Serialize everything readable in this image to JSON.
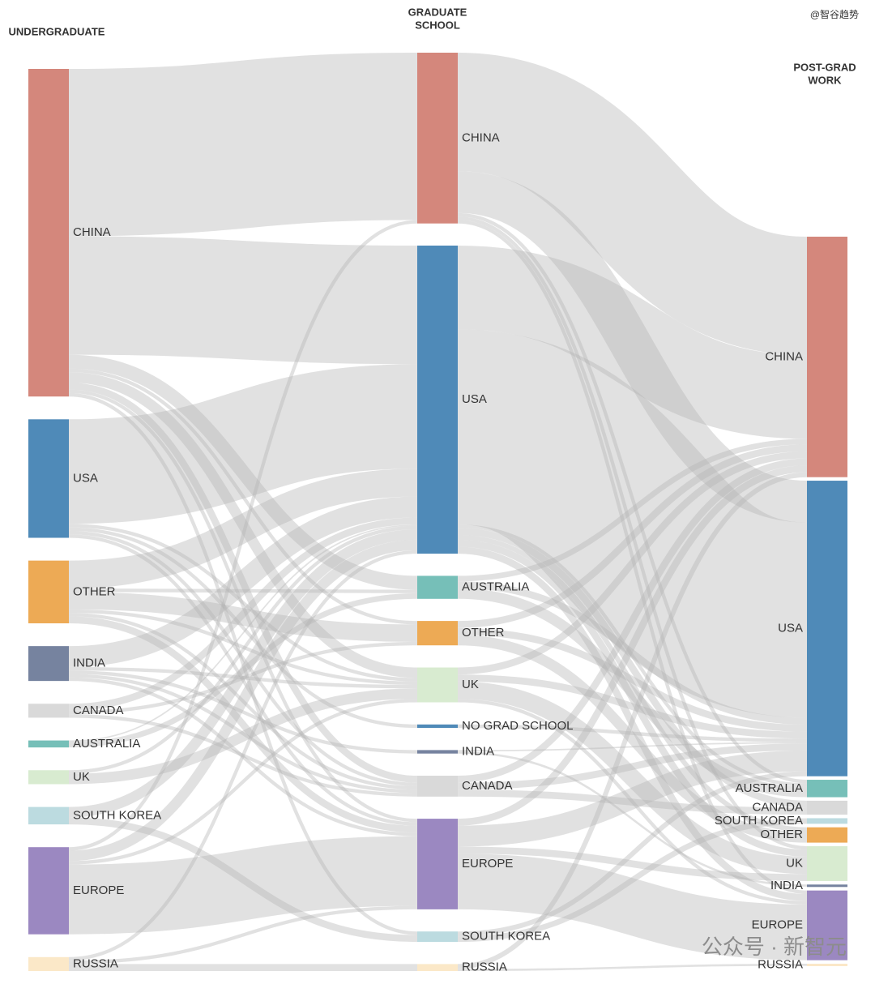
{
  "chart_data": {
    "type": "sankey",
    "columns": [
      {
        "title": [
          "UNDERGRADUATE"
        ],
        "nodes": [
          {
            "name": "CHINA",
            "color": "#d4877c"
          },
          {
            "name": "USA",
            "color": "#4f8ab8"
          },
          {
            "name": "OTHER",
            "color": "#edaa55"
          },
          {
            "name": "INDIA",
            "color": "#76839f"
          },
          {
            "name": "CANADA",
            "color": "#d9d9d9"
          },
          {
            "name": "AUSTRALIA",
            "color": "#76bfb8"
          },
          {
            "name": "UK",
            "color": "#d8ebd0"
          },
          {
            "name": "SOUTH KOREA",
            "color": "#bcdbe0"
          },
          {
            "name": "EUROPE",
            "color": "#9b88c1"
          },
          {
            "name": "RUSSIA",
            "color": "#fbe8c8"
          }
        ]
      },
      {
        "title": [
          "GRADUATE",
          "SCHOOL"
        ],
        "nodes": [
          {
            "name": "CHINA",
            "color": "#d4877c"
          },
          {
            "name": "USA",
            "color": "#4f8ab8"
          },
          {
            "name": "AUSTRALIA",
            "color": "#76bfb8"
          },
          {
            "name": "OTHER",
            "color": "#edaa55"
          },
          {
            "name": "UK",
            "color": "#d8ebd0"
          },
          {
            "name": "NO GRAD SCHOOL",
            "color": "#4f8ab8"
          },
          {
            "name": "INDIA",
            "color": "#76839f"
          },
          {
            "name": "CANADA",
            "color": "#d9d9d9"
          },
          {
            "name": "EUROPE",
            "color": "#9b88c1"
          },
          {
            "name": "SOUTH KOREA",
            "color": "#bcdbe0"
          },
          {
            "name": "RUSSIA",
            "color": "#fbe8c8"
          }
        ]
      },
      {
        "title": [
          "POST-GRAD",
          "WORK"
        ],
        "nodes": [
          {
            "name": "CHINA",
            "color": "#d4877c"
          },
          {
            "name": "USA",
            "color": "#4f8ab8"
          },
          {
            "name": "AUSTRALIA",
            "color": "#76bfb8"
          },
          {
            "name": "CANADA",
            "color": "#d9d9d9"
          },
          {
            "name": "SOUTH KOREA",
            "color": "#bcdbe0"
          },
          {
            "name": "OTHER",
            "color": "#edaa55"
          },
          {
            "name": "UK",
            "color": "#d8ebd0"
          },
          {
            "name": "INDIA",
            "color": "#76839f"
          },
          {
            "name": "EUROPE",
            "color": "#9b88c1"
          },
          {
            "name": "RUSSIA",
            "color": "#fbe8c8"
          }
        ]
      }
    ],
    "flows": [
      [
        {
          "from": "CHINA",
          "to": "CHINA",
          "value": 24
        },
        {
          "from": "CHINA",
          "to": "USA",
          "value": 17
        },
        {
          "from": "CHINA",
          "to": "AUSTRALIA",
          "value": 2
        },
        {
          "from": "CHINA",
          "to": "UK",
          "value": 1.5
        },
        {
          "from": "CHINA",
          "to": "CANADA",
          "value": 1
        },
        {
          "from": "CHINA",
          "to": "EUROPE",
          "value": 0.5
        },
        {
          "from": "CHINA",
          "to": "OTHER",
          "value": 0.5
        },
        {
          "from": "CHINA",
          "to": "SOUTH KOREA",
          "value": 0.5
        },
        {
          "from": "USA",
          "to": "USA",
          "value": 15
        },
        {
          "from": "USA",
          "to": "EUROPE",
          "value": 0.5
        },
        {
          "from": "USA",
          "to": "UK",
          "value": 0.5
        },
        {
          "from": "USA",
          "to": "CANADA",
          "value": 0.5
        },
        {
          "from": "USA",
          "to": "NO GRAD SCHOOL",
          "value": 0.5
        },
        {
          "from": "OTHER",
          "to": "USA",
          "value": 4
        },
        {
          "from": "OTHER",
          "to": "OTHER",
          "value": 2.5
        },
        {
          "from": "OTHER",
          "to": "EUROPE",
          "value": 1
        },
        {
          "from": "OTHER",
          "to": "AUSTRALIA",
          "value": 0.5
        },
        {
          "from": "OTHER",
          "to": "UK",
          "value": 0.5
        },
        {
          "from": "OTHER",
          "to": "CANADA",
          "value": 0.5
        },
        {
          "from": "INDIA",
          "to": "USA",
          "value": 3
        },
        {
          "from": "INDIA",
          "to": "INDIA",
          "value": 0.5
        },
        {
          "from": "INDIA",
          "to": "EUROPE",
          "value": 0.5
        },
        {
          "from": "INDIA",
          "to": "UK",
          "value": 0.5
        },
        {
          "from": "INDIA",
          "to": "CANADA",
          "value": 0.5
        },
        {
          "from": "CANADA",
          "to": "USA",
          "value": 1
        },
        {
          "from": "CANADA",
          "to": "CANADA",
          "value": 0.5
        },
        {
          "from": "CANADA",
          "to": "OTHER",
          "value": 0.5
        },
        {
          "from": "AUSTRALIA",
          "to": "AUSTRALIA",
          "value": 0.8
        },
        {
          "from": "AUSTRALIA",
          "to": "USA",
          "value": 0.2
        },
        {
          "from": "UK",
          "to": "UK",
          "value": 1.5
        },
        {
          "from": "UK",
          "to": "USA",
          "value": 0.5
        },
        {
          "from": "SOUTH KOREA",
          "to": "USA",
          "value": 1.5
        },
        {
          "from": "SOUTH KOREA",
          "to": "SOUTH KOREA",
          "value": 1
        },
        {
          "from": "EUROPE",
          "to": "EUROPE",
          "value": 10
        },
        {
          "from": "EUROPE",
          "to": "USA",
          "value": 1.5
        },
        {
          "from": "EUROPE",
          "to": "UK",
          "value": 0.5
        },
        {
          "from": "EUROPE",
          "to": "CHINA",
          "value": 0.5
        },
        {
          "from": "RUSSIA",
          "to": "RUSSIA",
          "value": 1
        },
        {
          "from": "RUSSIA",
          "to": "EUROPE",
          "value": 0.5
        },
        {
          "from": "RUSSIA",
          "to": "USA",
          "value": 0.5
        }
      ],
      [
        {
          "from": "CHINA",
          "to": "CHINA",
          "value": 17
        },
        {
          "from": "CHINA",
          "to": "USA",
          "value": 6
        },
        {
          "from": "CHINA",
          "to": "EUROPE",
          "value": 0.5
        },
        {
          "from": "CHINA",
          "to": "UK",
          "value": 0.5
        },
        {
          "from": "CHINA",
          "to": "AUSTRALIA",
          "value": 0.5
        },
        {
          "from": "USA",
          "to": "USA",
          "value": 28
        },
        {
          "from": "USA",
          "to": "CHINA",
          "value": 12
        },
        {
          "from": "USA",
          "to": "CANADA",
          "value": 1
        },
        {
          "from": "USA",
          "to": "UK",
          "value": 1
        },
        {
          "from": "USA",
          "to": "EUROPE",
          "value": 1
        },
        {
          "from": "USA",
          "to": "OTHER",
          "value": 0.7
        },
        {
          "from": "USA",
          "to": "AUSTRALIA",
          "value": 0.5
        },
        {
          "from": "AUSTRALIA",
          "to": "AUSTRALIA",
          "value": 1.5
        },
        {
          "from": "AUSTRALIA",
          "to": "USA",
          "value": 1
        },
        {
          "from": "AUSTRALIA",
          "to": "CHINA",
          "value": 0.8
        },
        {
          "from": "OTHER",
          "to": "OTHER",
          "value": 1.5
        },
        {
          "from": "OTHER",
          "to": "USA",
          "value": 1
        },
        {
          "from": "OTHER",
          "to": "CHINA",
          "value": 1
        },
        {
          "from": "UK",
          "to": "UK",
          "value": 2.5
        },
        {
          "from": "UK",
          "to": "USA",
          "value": 1
        },
        {
          "from": "UK",
          "to": "CHINA",
          "value": 1
        },
        {
          "from": "UK",
          "to": "EUROPE",
          "value": 0.5
        },
        {
          "from": "NO GRAD SCHOOL",
          "to": "USA",
          "value": 0.5
        },
        {
          "from": "INDIA",
          "to": "INDIA",
          "value": 0.3
        },
        {
          "from": "INDIA",
          "to": "USA",
          "value": 0.2
        },
        {
          "from": "CANADA",
          "to": "CANADA",
          "value": 1
        },
        {
          "from": "CANADA",
          "to": "USA",
          "value": 1
        },
        {
          "from": "CANADA",
          "to": "CHINA",
          "value": 1
        },
        {
          "from": "EUROPE",
          "to": "EUROPE",
          "value": 8
        },
        {
          "from": "EUROPE",
          "to": "USA",
          "value": 3
        },
        {
          "from": "EUROPE",
          "to": "CHINA",
          "value": 1
        },
        {
          "from": "EUROPE",
          "to": "UK",
          "value": 1
        },
        {
          "from": "SOUTH KOREA",
          "to": "SOUTH KOREA",
          "value": 0.8
        },
        {
          "from": "SOUTH KOREA",
          "to": "USA",
          "value": 0.7
        },
        {
          "from": "RUSSIA",
          "to": "RUSSIA",
          "value": 0.3
        },
        {
          "from": "RUSSIA",
          "to": "CHINA",
          "value": 0.7
        }
      ]
    ],
    "link_color": "#b4b4b4"
  },
  "watermarks": [
    "@智谷趋势",
    "公众号 · 新智元"
  ]
}
